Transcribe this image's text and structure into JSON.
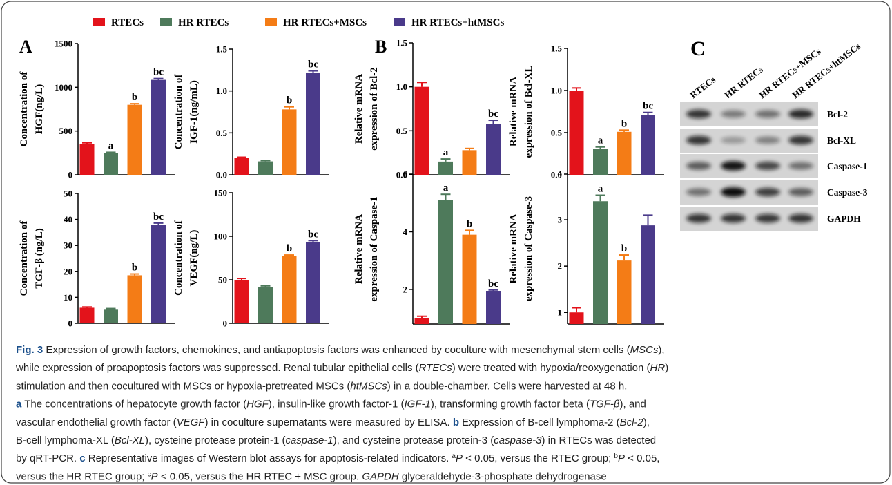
{
  "legend": [
    {
      "name": "RTECs",
      "color": "#e3131b"
    },
    {
      "name": "HR RTECs",
      "color": "#4e7a5b"
    },
    {
      "name": "HR RTECs+MSCs",
      "color": "#f47c16"
    },
    {
      "name": "HR RTECs+htMSCs",
      "color": "#4a3a8a"
    }
  ],
  "panels": [
    "A",
    "B",
    "C"
  ],
  "chart_data": [
    {
      "type": "bar",
      "ylabel": [
        "Concentration of",
        "HGF(ng/L)"
      ],
      "values": [
        350,
        245,
        800,
        1085
      ],
      "errors": [
        15,
        12,
        12,
        15
      ],
      "annotations": [
        null,
        "a",
        "b",
        "bc"
      ],
      "ylim": [
        0,
        1500
      ],
      "yticks": [
        0,
        500,
        1000,
        1500
      ]
    },
    {
      "type": "bar",
      "ylabel": [
        "Concentration of",
        "IGF-1(ng/mL)"
      ],
      "values": [
        0.2,
        0.16,
        0.78,
        1.22
      ],
      "errors": [
        0.01,
        0.01,
        0.03,
        0.02
      ],
      "annotations": [
        null,
        null,
        "b",
        "bc"
      ],
      "ylim": [
        0,
        1.5
      ],
      "yticks": [
        {
          "value": 0,
          "label": "0.0"
        },
        0.5,
        {
          "value": 1,
          "label": "1.0"
        },
        1.5
      ]
    },
    {
      "type": "bar",
      "ylabel": [
        "Concentration of",
        "TGF-β (ng/L)"
      ],
      "values": [
        6,
        5.5,
        18.5,
        38
      ],
      "errors": [
        0.3,
        0.2,
        0.5,
        0.6
      ],
      "annotations": [
        null,
        null,
        "b",
        "bc"
      ],
      "ylim": [
        0,
        50
      ],
      "yticks": [
        0,
        10,
        20,
        30,
        40,
        50
      ]
    },
    {
      "type": "bar",
      "ylabel": [
        "Concentration of",
        "VEGF(ng/L)"
      ],
      "values": [
        50,
        42,
        77,
        93
      ],
      "errors": [
        1.5,
        1,
        1.5,
        2
      ],
      "annotations": [
        null,
        null,
        "b",
        "bc"
      ],
      "ylim": [
        0,
        150
      ],
      "yticks": [
        0,
        50,
        100,
        150
      ]
    },
    {
      "type": "bar",
      "ylabel": [
        "Relative mRNA",
        "expression of Bcl-2"
      ],
      "values": [
        1.0,
        0.15,
        0.28,
        0.58
      ],
      "errors": [
        0.05,
        0.03,
        0.02,
        0.04
      ],
      "annotations": [
        null,
        "a",
        null,
        "bc"
      ],
      "ylim": [
        0,
        1.5
      ],
      "yticks": [
        {
          "value": 0,
          "label": "0.0"
        },
        0.5,
        {
          "value": 1,
          "label": "1.0"
        },
        1.5
      ]
    },
    {
      "type": "bar",
      "ylabel": [
        "Relative mRNA",
        "expression of Bcl-XL"
      ],
      "values": [
        1.0,
        0.31,
        0.51,
        0.71
      ],
      "errors": [
        0.03,
        0.02,
        0.02,
        0.03
      ],
      "annotations": [
        null,
        "a",
        "b",
        "bc"
      ],
      "ylim": [
        0,
        1.5
      ],
      "yticks": [
        {
          "value": 0,
          "label": "0.0"
        },
        0.5,
        {
          "value": 1,
          "label": "1.0"
        },
        1.5
      ]
    },
    {
      "type": "bar",
      "ylabel": [
        "Relative mRNA",
        "expression of Caspase-1"
      ],
      "values": [
        1.0,
        5.1,
        3.9,
        1.95
      ],
      "errors": [
        0.07,
        0.2,
        0.15,
        0.03
      ],
      "annotations": [
        null,
        "a",
        "b",
        "bc"
      ],
      "ylim": [
        0.8,
        6
      ],
      "yticks": [
        2,
        4,
        6
      ]
    },
    {
      "type": "bar",
      "ylabel": [
        "Relative mRNA",
        "expression of Caspase-3"
      ],
      "values": [
        1.0,
        3.4,
        2.12,
        2.88
      ],
      "errors": [
        0.1,
        0.13,
        0.12,
        0.22
      ],
      "annotations": [
        null,
        "a",
        "b",
        null
      ],
      "ylim": [
        0.75,
        4
      ],
      "yticks": [
        1,
        2,
        3,
        4
      ]
    }
  ],
  "blot": {
    "columns": [
      "RTECs",
      "HR RTECs",
      "HR RTECs+MSCs",
      "HR RTECs+htMSCs"
    ],
    "rows": [
      "Bcl-2",
      "Bcl-XL",
      "Caspase-1",
      "Caspase-3",
      "GAPDH"
    ]
  },
  "caption": {
    "lines": [
      [
        {
          "text": "Fig. 3",
          "style": "bold"
        },
        {
          "text": " Expression of growth factors, chemokines, and antiapoptosis factors was enhanced by coculture with mesenchymal stem cells ("
        },
        {
          "text": "MSCs",
          "style": "italic"
        },
        {
          "text": "),"
        }
      ],
      [
        {
          "text": "while expression of proapoptosis factors was suppressed. Renal tubular epithelial cells ("
        },
        {
          "text": "RTECs",
          "style": "italic"
        },
        {
          "text": ") were treated with hypoxia/reoxygenation ("
        },
        {
          "text": "HR",
          "style": "italic"
        },
        {
          "text": ")"
        }
      ],
      [
        {
          "text": "stimulation and then cocultured with MSCs or hypoxia-pretreated MSCs ("
        },
        {
          "text": "htMSCs",
          "style": "italic"
        },
        {
          "text": ") in a double-chamber. Cells were harvested at 48 h."
        }
      ],
      [
        {
          "text": "a",
          "style": "bold"
        },
        {
          "text": " The concentrations of hepatocyte growth factor ("
        },
        {
          "text": "HGF",
          "style": "italic"
        },
        {
          "text": "), insulin-like growth factor-1 ("
        },
        {
          "text": "IGF-1",
          "style": "italic"
        },
        {
          "text": "), transforming growth factor beta ("
        },
        {
          "text": "TGF-β",
          "style": "italic"
        },
        {
          "text": "), and"
        }
      ],
      [
        {
          "text": "vascular endothelial growth factor ("
        },
        {
          "text": "VEGF",
          "style": "italic"
        },
        {
          "text": ") in coculture supernatants were measured by ELISA. "
        },
        {
          "text": "b",
          "style": "bold"
        },
        {
          "text": " Expression of B-cell lymphoma-2 ("
        },
        {
          "text": "Bcl-2",
          "style": "italic"
        },
        {
          "text": "),"
        }
      ],
      [
        {
          "text": "B-cell lymphoma-XL ("
        },
        {
          "text": "Bcl-XL",
          "style": "italic"
        },
        {
          "text": "), cysteine protease protein-1 ("
        },
        {
          "text": "caspase-1",
          "style": "italic"
        },
        {
          "text": "), and cysteine protease protein-3 ("
        },
        {
          "text": "caspase-3",
          "style": "italic"
        },
        {
          "text": ") in RTECs was detected"
        }
      ],
      [
        {
          "text": "by qRT-PCR. "
        },
        {
          "text": "c",
          "style": "bold"
        },
        {
          "text": " Representative images of Western blot assays for apoptosis-related indicators. "
        },
        {
          "text": "a",
          "style": "sup"
        },
        {
          "text": "P",
          "style": "italic"
        },
        {
          "text": " < 0.05, versus the RTEC group; "
        },
        {
          "text": "b",
          "style": "sup"
        },
        {
          "text": "P",
          "style": "italic"
        },
        {
          "text": " < 0.05,"
        }
      ],
      [
        {
          "text": "versus the HR RTEC group; "
        },
        {
          "text": "c",
          "style": "sup"
        },
        {
          "text": "P",
          "style": "italic"
        },
        {
          "text": " < 0.05, versus the HR RTEC + MSC group. "
        },
        {
          "text": "GAPDH",
          "style": "italic"
        },
        {
          "text": " glyceraldehyde-3-phosphate dehydrogenase"
        }
      ]
    ]
  }
}
